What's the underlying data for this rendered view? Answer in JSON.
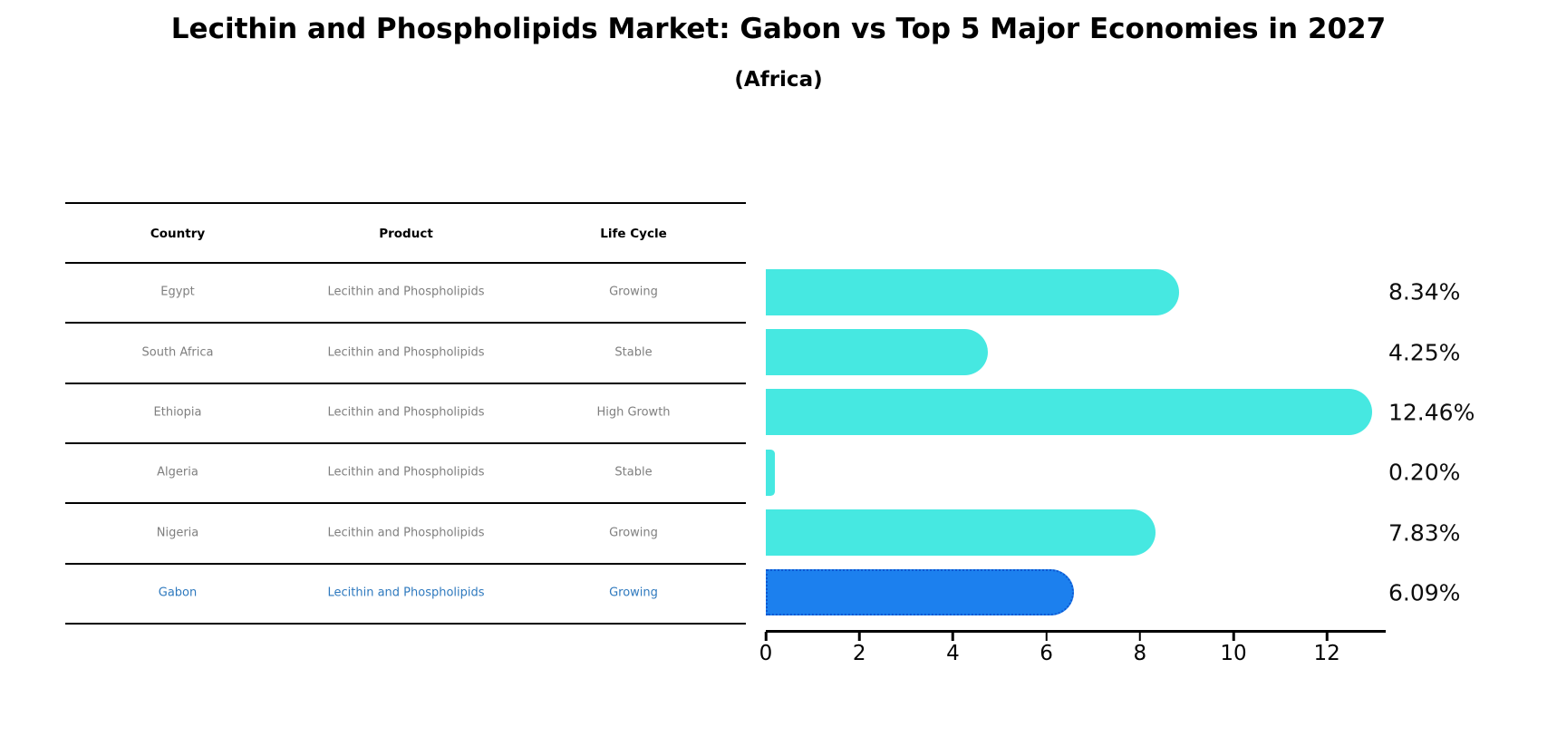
{
  "table": {
    "columns": [
      "Country",
      "Product",
      "Life Cycle"
    ],
    "rows": [
      {
        "country": "Egypt",
        "product": "Lecithin and Phospholipids",
        "life_cycle": "Growing",
        "highlight": false
      },
      {
        "country": "South Africa",
        "product": "Lecithin and Phospholipids",
        "life_cycle": "Stable",
        "highlight": false
      },
      {
        "country": "Ethiopia",
        "product": "Lecithin and Phospholipids",
        "life_cycle": "High Growth",
        "highlight": false
      },
      {
        "country": "Algeria",
        "product": "Lecithin and Phospholipids",
        "life_cycle": "Stable",
        "highlight": false
      },
      {
        "country": "Nigeria",
        "product": "Lecithin and Phospholipids",
        "life_cycle": "Growing",
        "highlight": false
      },
      {
        "country": "Gabon",
        "product": "Lecithin and Phospholipids",
        "life_cycle": "Growing",
        "highlight": true
      }
    ]
  },
  "chart_data": {
    "type": "bar",
    "orientation": "horizontal",
    "title": "Lecithin and Phospholipids Market: Gabon vs Top 5 Major Economies in 2027",
    "subtitle": "(Africa)",
    "categories": [
      "Egypt",
      "South Africa",
      "Ethiopia",
      "Algeria",
      "Nigeria",
      "Gabon"
    ],
    "values": [
      8.34,
      4.25,
      12.46,
      0.2,
      7.83,
      6.09
    ],
    "value_labels": [
      "8.34%",
      "4.25%",
      "12.46%",
      "0.20%",
      "7.83%",
      "6.09%"
    ],
    "x_ticks": [
      0,
      2,
      4,
      6,
      8,
      10,
      12
    ],
    "xlim": [
      0,
      13.2
    ],
    "xlabel": "",
    "ylabel": "",
    "grid": "off",
    "legend": "none",
    "bar_color": "#46e8e1",
    "highlight": {
      "index": 5,
      "category": "Gabon",
      "color": "#1c80ee",
      "edge_color": "#0d57d1",
      "edge_style": "dotted",
      "text_color": "#2e79be"
    }
  }
}
